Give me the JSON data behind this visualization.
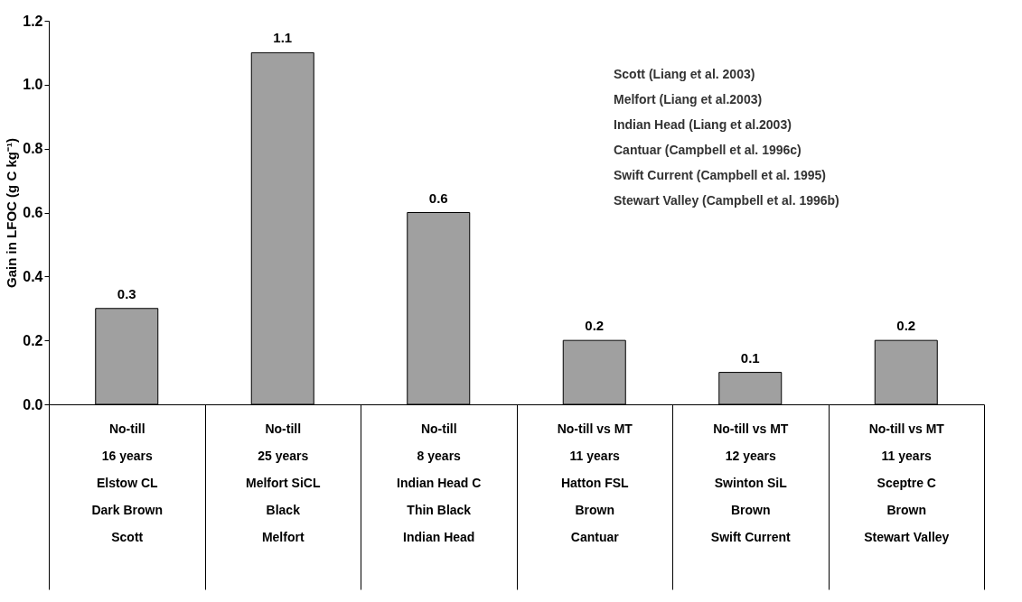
{
  "chart_data": {
    "type": "bar",
    "ylabel": "Gain in LFOC (g C kg⁻¹)",
    "categories": [
      "No-till\n16 years\nElstow CL\nDark Brown\nScott",
      "No-till\n25 years\nMelfort SiCL\nBlack\nMelfort",
      "No-till\n8 years\nIndian Head C\nThin Black\nIndian Head",
      "No-till vs MT\n11 years\nHatton FSL\nBrown\nCantuar",
      "No-till vs MT\n12 years\nSwinton SiL\nBrown\nSwift Current",
      "No-till vs MT\n11 years\nSceptre C\nBrown\nStewart Valley"
    ],
    "values": [
      0.3,
      1.1,
      0.6,
      0.2,
      0.1,
      0.2
    ],
    "color": "#a0a0a0",
    "data_labels": true,
    "ylim": [
      0,
      1.2
    ],
    "yticks": [
      {
        "value": 0,
        "label": "0.0"
      },
      {
        "value": 0.2,
        "label": "0.2"
      },
      {
        "value": 0.4,
        "label": "0.4"
      },
      {
        "value": 0.6,
        "label": "0.6"
      },
      {
        "value": 0.8,
        "label": "0.8"
      },
      {
        "value": 1.0,
        "label": "1.0"
      },
      {
        "value": 1.2,
        "label": "1.2"
      }
    ],
    "grid": false,
    "annotations": [
      "Scott (Liang et al. 2003)",
      "Melfort (Liang et al.2003)",
      "Indian Head (Liang et al.2003)",
      "Cantuar (Campbell et al. 1996c)",
      "Swift Current (Campbell et al. 1995)",
      "Stewart Valley (Campbell et al. 1996b)"
    ]
  }
}
